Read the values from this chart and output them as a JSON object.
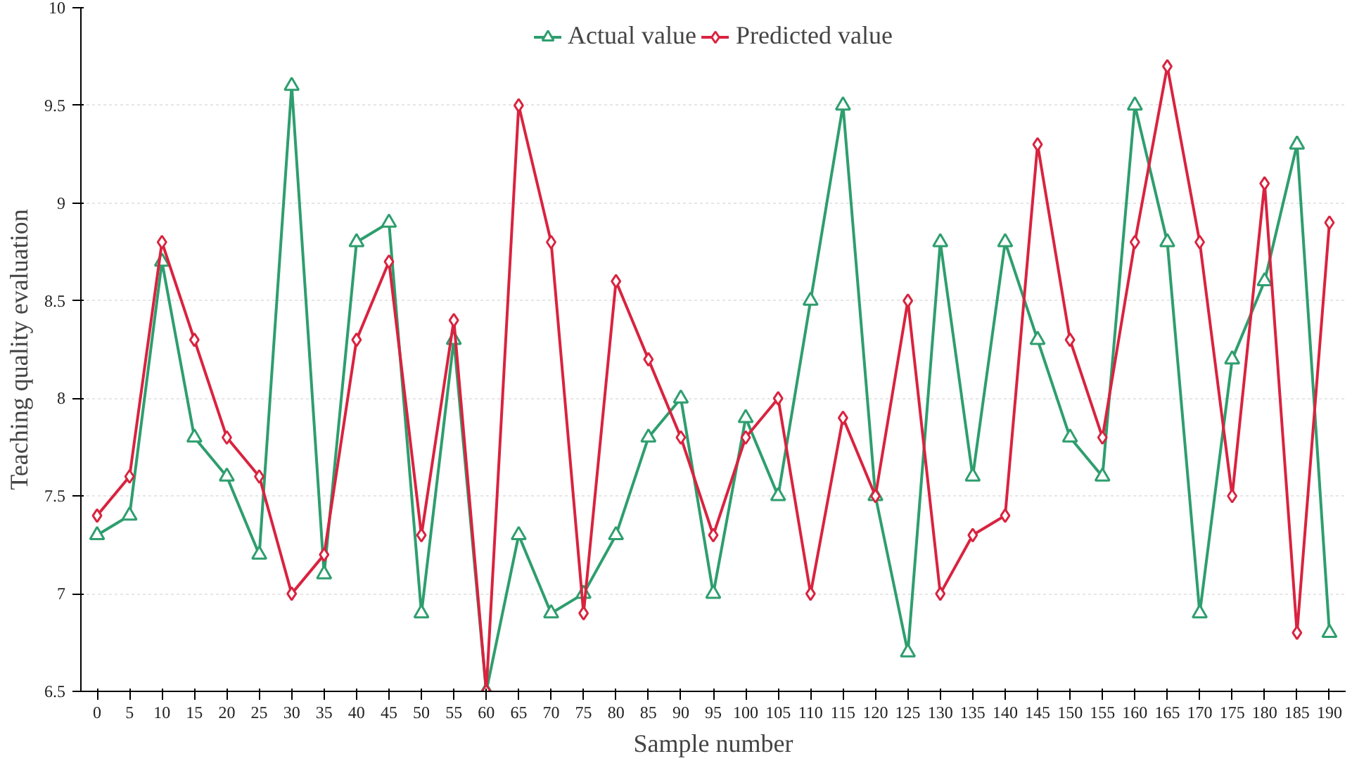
{
  "chart_data": {
    "type": "line",
    "xlabel": "Sample number",
    "ylabel": "Teaching quality evaluation",
    "categories": [
      "0",
      "5",
      "10",
      "15",
      "20",
      "25",
      "30",
      "35",
      "40",
      "45",
      "50",
      "55",
      "60",
      "65",
      "70",
      "75",
      "80",
      "85",
      "90",
      "95",
      "100",
      "105",
      "110",
      "115",
      "120",
      "125",
      "130",
      "135",
      "140",
      "145",
      "150",
      "155",
      "160",
      "165",
      "170",
      "175",
      "180",
      "185",
      "190"
    ],
    "series": [
      {
        "name": "Actual value",
        "color": "#2e9e6e",
        "marker": "triangle",
        "values": [
          7.3,
          7.4,
          8.7,
          7.8,
          7.6,
          7.2,
          9.6,
          7.1,
          8.8,
          8.9,
          6.9,
          8.3,
          6.5,
          7.3,
          6.9,
          7.0,
          7.3,
          7.8,
          8.0,
          7.0,
          7.9,
          7.5,
          8.5,
          9.5,
          7.5,
          6.7,
          8.8,
          7.6,
          8.8,
          8.3,
          7.8,
          7.6,
          9.5,
          8.8,
          6.9,
          8.2,
          8.6,
          9.3,
          6.8
        ]
      },
      {
        "name": "Predicted value",
        "color": "#d9233f",
        "marker": "diamond",
        "values": [
          7.4,
          7.6,
          8.8,
          8.3,
          7.8,
          7.6,
          7.0,
          7.2,
          8.3,
          8.7,
          7.3,
          8.4,
          6.5,
          9.5,
          8.8,
          6.9,
          8.6,
          8.2,
          7.8,
          7.3,
          7.8,
          8.0,
          7.0,
          7.9,
          7.5,
          8.5,
          7.0,
          7.3,
          7.4,
          9.3,
          8.3,
          7.8,
          8.8,
          9.7,
          8.8,
          7.5,
          9.1,
          6.8,
          8.9
        ]
      }
    ],
    "ylim": [
      6.5,
      10
    ],
    "yticks": [
      6.5,
      7,
      7.5,
      8,
      8.5,
      9,
      9.5,
      10
    ],
    "grid": "y",
    "legend": "top",
    "line_style": "solid"
  }
}
